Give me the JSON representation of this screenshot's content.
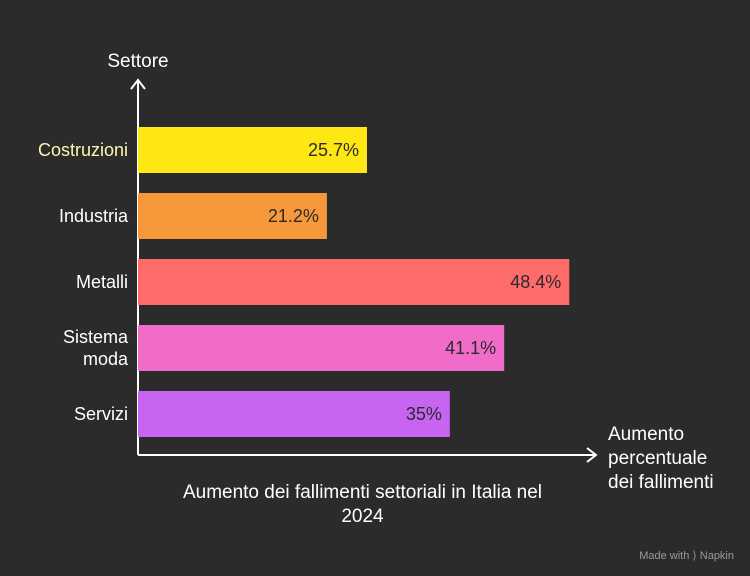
{
  "chart_data": {
    "type": "bar",
    "orientation": "horizontal",
    "categories": [
      "Costruzioni",
      "Industria",
      "Metalli",
      "Sistema moda",
      "Servizi"
    ],
    "values": [
      25.7,
      21.2,
      48.4,
      41.1,
      35
    ],
    "data_labels": [
      "25.7%",
      "21.2%",
      "48.4%",
      "41.1%",
      "35%"
    ],
    "colors": [
      "#ffe714",
      "#f7983a",
      "#ff6b6b",
      "#f06cc8",
      "#c764f2"
    ],
    "label_colors": [
      "#fff4b0",
      "#ffffff",
      "#ffffff",
      "#ffffff",
      "#ffffff"
    ],
    "ylabel": "Settore",
    "xlabel": "Aumento percentuale dei fallimenti",
    "xlim": [
      0,
      55
    ],
    "grid": false
  },
  "caption": "Aumento dei fallimenti settoriali in Italia nel 2024",
  "watermark": "Made with ⟩ Napkin"
}
